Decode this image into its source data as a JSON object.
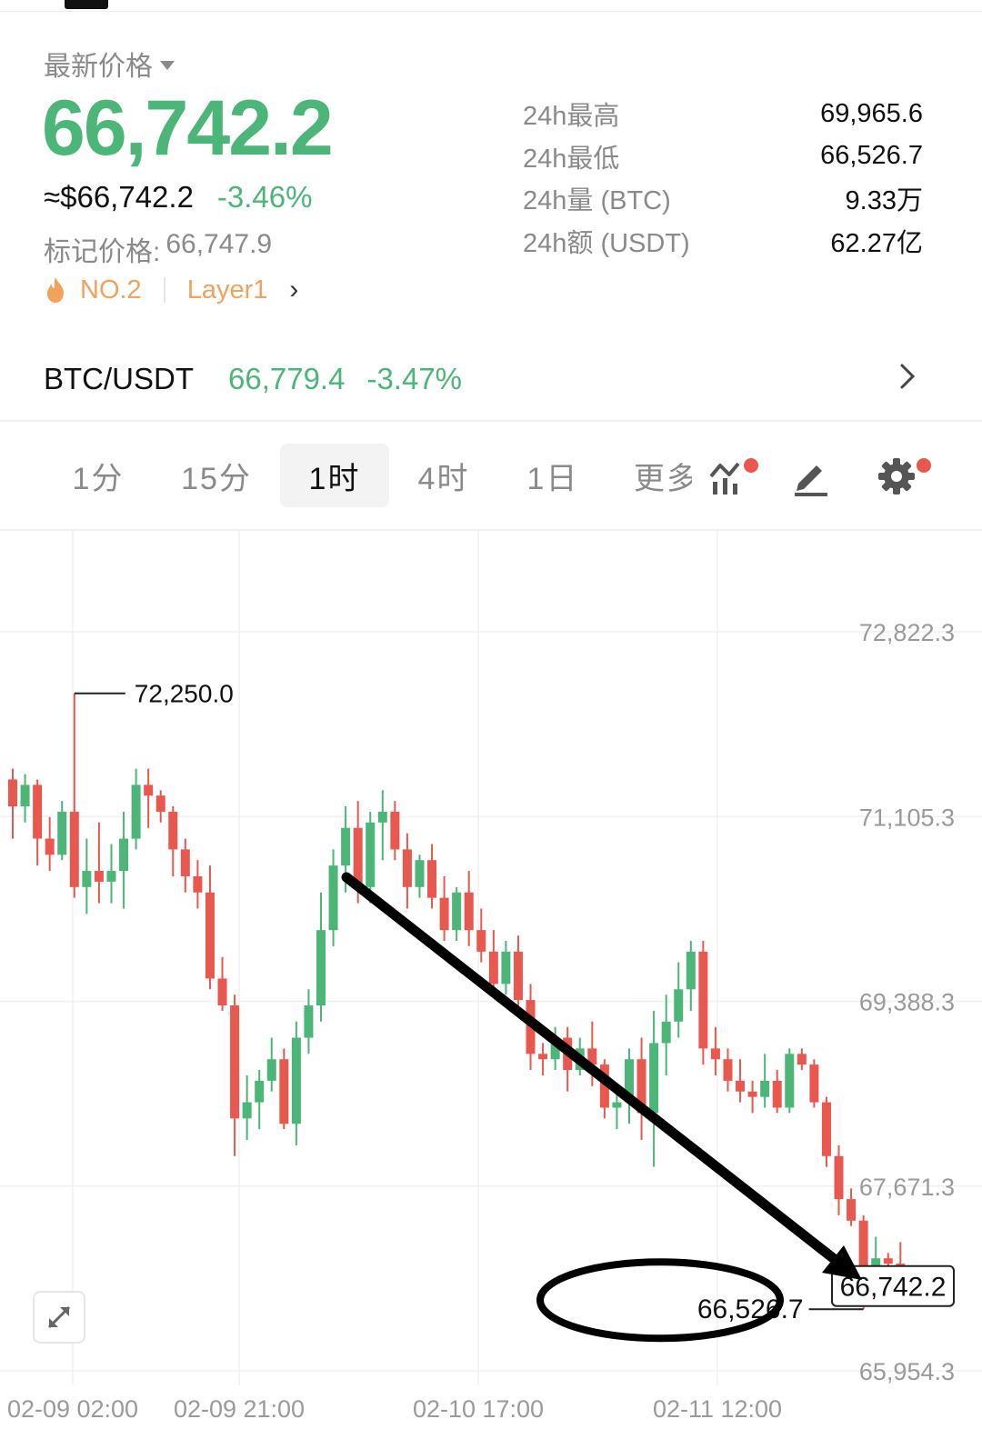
{
  "header": {
    "price_label": "最新价格",
    "last_price": "66,742.2",
    "usd_price": "≈$66,742.2",
    "change_pct": "-3.46%",
    "mark_label": "标记价格:",
    "mark_price": "66,747.9",
    "rank_tag": "NO.2",
    "category_tag": "Layer1"
  },
  "stats": [
    {
      "label": "24h最高",
      "value": "69,965.6"
    },
    {
      "label": "24h最低",
      "value": "66,526.7"
    },
    {
      "label": "24h量 (BTC)",
      "value": "9.33万"
    },
    {
      "label": "24h额 (USDT)",
      "value": "62.27亿"
    }
  ],
  "pair": {
    "name": "BTC/USDT",
    "price": "66,779.4",
    "change": "-3.47%"
  },
  "tabs": [
    "1分",
    "15分",
    "1时",
    "4时",
    "1日",
    "更多"
  ],
  "active_tab": "1时",
  "colors": {
    "up": "#4cb578",
    "down": "#e8584f",
    "tag": "#f0a35e",
    "muted": "#8a8a8a"
  },
  "chart_data": {
    "type": "candlestick",
    "interval": "1时",
    "y_ticks": [
      "72,822.3",
      "71,105.3",
      "69,388.3",
      "67,671.3",
      "65,954.3"
    ],
    "x_ticks": [
      "02-09 02:00",
      "02-09 21:00",
      "02-10 17:00",
      "02-11 12:00"
    ],
    "high_label": "72,250.0",
    "low_label": "66,526.7",
    "last_label": "66,742.2",
    "ohlc": [
      [
        71450,
        71550,
        70900,
        71200
      ],
      [
        71200,
        71500,
        71050,
        71400
      ],
      [
        71400,
        71450,
        70650,
        70900
      ],
      [
        70900,
        71100,
        70600,
        70750
      ],
      [
        70750,
        71250,
        70700,
        71150
      ],
      [
        71150,
        72250,
        70350,
        70450
      ],
      [
        70450,
        70900,
        70200,
        70600
      ],
      [
        70600,
        71050,
        70300,
        70500
      ],
      [
        70500,
        70850,
        70300,
        70600
      ],
      [
        70600,
        71150,
        70250,
        70900
      ],
      [
        70900,
        71550,
        70800,
        71400
      ],
      [
        71400,
        71550,
        71000,
        71300
      ],
      [
        71300,
        71350,
        71050,
        71150
      ],
      [
        71150,
        71200,
        70550,
        70800
      ],
      [
        70800,
        70900,
        70400,
        70550
      ],
      [
        70550,
        70700,
        70250,
        70400
      ],
      [
        70400,
        70650,
        69500,
        69600
      ],
      [
        69600,
        69800,
        69300,
        69350
      ],
      [
        69350,
        69450,
        67950,
        68300
      ],
      [
        68300,
        68700,
        68100,
        68450
      ],
      [
        68450,
        68750,
        68200,
        68650
      ],
      [
        68650,
        69050,
        68550,
        68850
      ],
      [
        68850,
        68950,
        68200,
        68250
      ],
      [
        68250,
        69200,
        68050,
        69050
      ],
      [
        69050,
        69500,
        68900,
        69350
      ],
      [
        69350,
        70400,
        69200,
        70050
      ],
      [
        70050,
        70800,
        69900,
        70650
      ],
      [
        70650,
        71200,
        70400,
        71000
      ],
      [
        71000,
        71250,
        70300,
        70450
      ],
      [
        70450,
        71150,
        70300,
        71050
      ],
      [
        71050,
        71350,
        70700,
        71150
      ],
      [
        71150,
        71250,
        70700,
        70800
      ],
      [
        70800,
        70950,
        70250,
        70450
      ],
      [
        70450,
        70750,
        70350,
        70700
      ],
      [
        70700,
        70850,
        70250,
        70350
      ],
      [
        70350,
        70550,
        69950,
        70050
      ],
      [
        70050,
        70450,
        69950,
        70400
      ],
      [
        70400,
        70600,
        69900,
        70050
      ],
      [
        70050,
        70250,
        69750,
        69850
      ],
      [
        69850,
        70050,
        69450,
        69550
      ],
      [
        69550,
        69950,
        69450,
        69850
      ],
      [
        69850,
        70000,
        69250,
        69400
      ],
      [
        69400,
        69550,
        68750,
        68900
      ],
      [
        68900,
        69000,
        68700,
        68850
      ],
      [
        68850,
        69150,
        68750,
        69050
      ],
      [
        69050,
        69150,
        68550,
        68750
      ],
      [
        68750,
        69050,
        68700,
        68950
      ],
      [
        68950,
        69200,
        68600,
        68800
      ],
      [
        68800,
        68850,
        68300,
        68400
      ],
      [
        68400,
        68550,
        68200,
        68450
      ],
      [
        68450,
        68950,
        68250,
        68850
      ],
      [
        68850,
        69050,
        68100,
        68350
      ],
      [
        68350,
        69300,
        67850,
        69000
      ],
      [
        69000,
        69450,
        68700,
        69200
      ],
      [
        69200,
        69750,
        69050,
        69500
      ],
      [
        69500,
        69950,
        69300,
        69850
      ],
      [
        69850,
        69950,
        68800,
        68950
      ],
      [
        68950,
        69150,
        68700,
        68850
      ],
      [
        68850,
        68950,
        68550,
        68650
      ],
      [
        68650,
        68850,
        68450,
        68550
      ],
      [
        68550,
        68650,
        68350,
        68500
      ],
      [
        68500,
        68900,
        68400,
        68650
      ],
      [
        68650,
        68750,
        68350,
        68400
      ],
      [
        68400,
        68950,
        68350,
        68900
      ],
      [
        68900,
        68950,
        68750,
        68800
      ],
      [
        68800,
        68850,
        68400,
        68450
      ],
      [
        68450,
        68500,
        67850,
        67950
      ],
      [
        67950,
        68050,
        67400,
        67550
      ],
      [
        67550,
        67650,
        67300,
        67350
      ],
      [
        67350,
        67400,
        66526.7,
        66850
      ],
      [
        66850,
        67200,
        66650,
        67000
      ],
      [
        67000,
        67050,
        66800,
        66950
      ],
      [
        66950,
        67150,
        66750,
        66742.2
      ]
    ]
  }
}
